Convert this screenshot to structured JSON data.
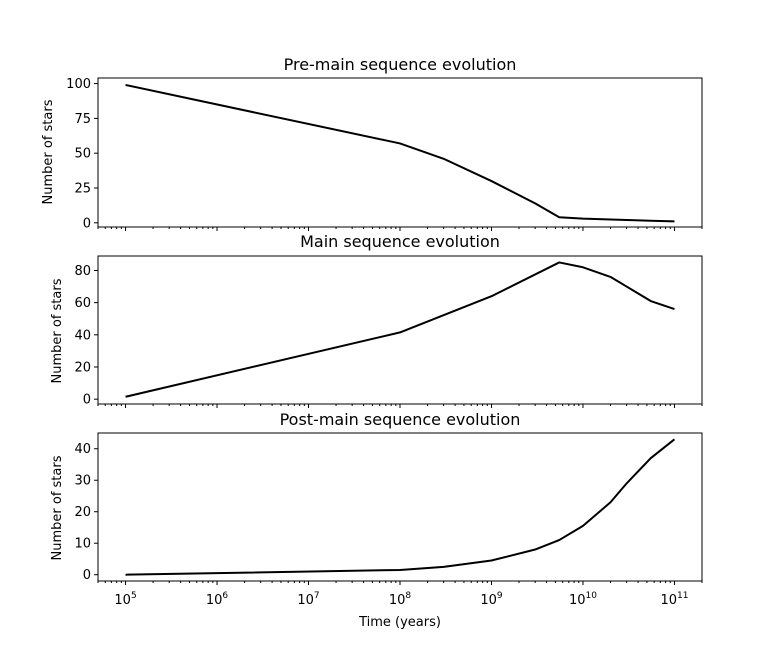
{
  "chart_data": [
    {
      "type": "line",
      "title": "Pre-main sequence evolution",
      "xlabel": "",
      "ylabel": "Number of stars",
      "xscale": "log",
      "xlim": [
        50000,
        200000000000
      ],
      "ylim": [
        -3,
        104
      ],
      "yticks": [
        0,
        25,
        50,
        75,
        100
      ],
      "series": [
        {
          "x": [
            100000,
            100000000,
            300000000,
            1000000000,
            3000000000,
            5500000000,
            10000000000,
            30000000000,
            55000000000,
            100000000000
          ],
          "values": [
            99,
            57,
            46,
            30,
            14,
            4,
            3,
            2,
            1.5,
            1
          ]
        }
      ]
    },
    {
      "type": "line",
      "title": "Main sequence evolution",
      "xlabel": "",
      "ylabel": "Number of stars",
      "xscale": "log",
      "xlim": [
        50000,
        200000000000
      ],
      "ylim": [
        -3,
        89
      ],
      "yticks": [
        0,
        20,
        40,
        60,
        80
      ],
      "series": [
        {
          "x": [
            100000,
            100000000,
            1000000000,
            5500000000,
            10000000000,
            20000000000,
            30000000000,
            55000000000,
            100000000000
          ],
          "values": [
            1.5,
            41.5,
            64,
            85,
            82,
            76,
            70,
            61,
            56
          ]
        }
      ]
    },
    {
      "type": "line",
      "title": "Post-main sequence evolution",
      "xlabel": "Time (years)",
      "ylabel": "Number of stars",
      "xscale": "log",
      "xlim": [
        50000,
        200000000000
      ],
      "ylim": [
        -2,
        45
      ],
      "yticks": [
        0,
        10,
        20,
        30,
        40
      ],
      "xticks": [
        {
          "value": 100000,
          "base": "10",
          "exp": "5"
        },
        {
          "value": 1000000,
          "base": "10",
          "exp": "6"
        },
        {
          "value": 10000000,
          "base": "10",
          "exp": "7"
        },
        {
          "value": 100000000,
          "base": "10",
          "exp": "8"
        },
        {
          "value": 1000000000,
          "base": "10",
          "exp": "9"
        },
        {
          "value": 10000000000,
          "base": "10",
          "exp": "10"
        },
        {
          "value": 100000000000,
          "base": "10",
          "exp": "11"
        }
      ],
      "series": [
        {
          "x": [
            100000,
            100000000,
            300000000,
            1000000000,
            3000000000,
            5500000000,
            10000000000,
            20000000000,
            30000000000,
            55000000000,
            100000000000
          ],
          "values": [
            0,
            1.5,
            2.5,
            4.5,
            8,
            11,
            15.5,
            23,
            29,
            37,
            43
          ]
        }
      ]
    }
  ]
}
